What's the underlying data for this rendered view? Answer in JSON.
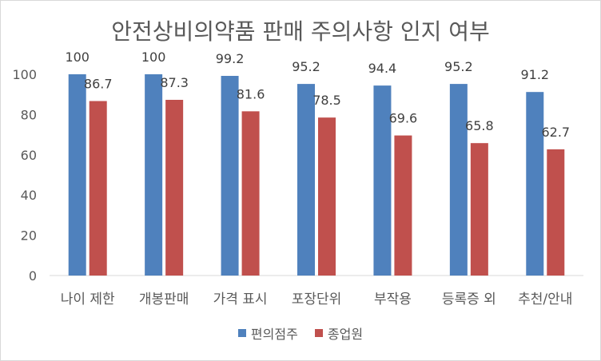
{
  "chart_data": {
    "type": "bar",
    "title": "안전상비의약품 판매 주의사항 인지 여부",
    "categories": [
      "나이 제한",
      "개봉판매",
      "가격 표시",
      "포장단위",
      "부작용",
      "등록증 외",
      "추천/안내"
    ],
    "series": [
      {
        "name": "편의점주",
        "color": "#4f81bd",
        "values": [
          100,
          100,
          99.2,
          95.2,
          94.4,
          95.2,
          91.2
        ],
        "labels": [
          "100",
          "100",
          "99.2",
          "95.2",
          "94.4",
          "95.2",
          "91.2"
        ]
      },
      {
        "name": "종업원",
        "color": "#c0504d",
        "values": [
          86.7,
          87.3,
          81.6,
          78.5,
          69.6,
          65.8,
          62.7
        ],
        "labels": [
          "86.7",
          "87.3",
          "81.6",
          "78.5",
          "69.6",
          "65.8",
          "62.7"
        ]
      }
    ],
    "ylim": [
      0,
      100
    ],
    "yticks": [
      "0",
      "20",
      "40",
      "60",
      "80",
      "100"
    ],
    "grid": false,
    "legend_position": "bottom"
  }
}
